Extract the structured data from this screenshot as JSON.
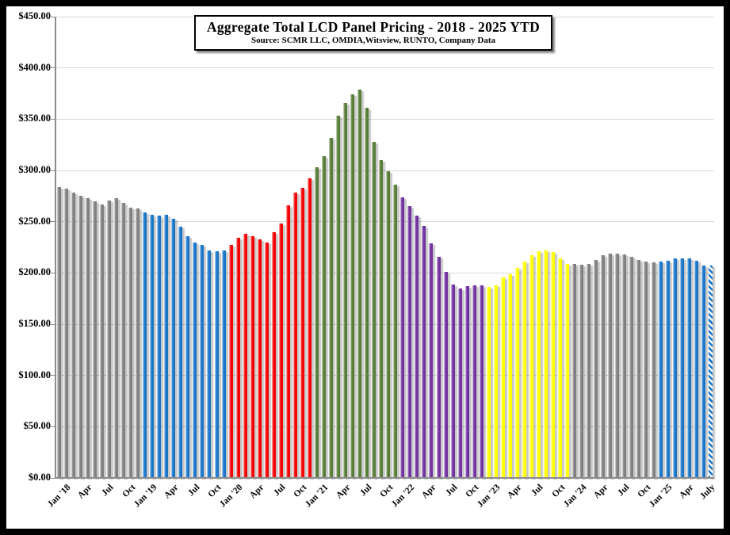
{
  "title_box": {
    "title": "Aggregate Total LCD Panel Pricing - 2018 - 2025 YTD",
    "source": "Source: SCMR LLC, OMDIA,Witsview, RUNTO, Company Data"
  },
  "colors": {
    "grid": "#DADADA",
    "axis": "#8c8c8c",
    "frame_border": "#000000",
    "background": "#ffffff",
    "gray_year": "#7F7F7F",
    "blue_year": "#1874C8",
    "red_year": "#F40000",
    "green_year": "#557C34",
    "purple_year": "#7030A0",
    "yellow_year": "#FFFF00"
  },
  "chart_data": {
    "type": "bar",
    "title": "Aggregate Total LCD Panel Pricing - 2018 - 2025 YTD",
    "subtitle": "Source: SCMR LLC, OMDIA,Witsview, RUNTO, Company Data",
    "ylim": [
      0,
      450
    ],
    "ytick_step": 50,
    "grid": true,
    "legend": "none",
    "y_tick_labels": [
      "$0.00",
      "$50.00",
      "$100.00",
      "$150.00",
      "$200.00",
      "$250.00",
      "$300.00",
      "$350.00",
      "$400.00",
      "$450.00"
    ],
    "x_tick_labels": [
      "Jan '18",
      "Apr",
      "Jul",
      "Oct",
      "Jan '19",
      "Apr",
      "Jul",
      "Oct",
      "Jan '20",
      "Apr",
      "Jul",
      "Oct",
      "Jan '21",
      "Apr",
      "Jul",
      "Oct",
      "Jan '22",
      "Apr",
      "Jul",
      "Oct",
      "Jan '23",
      "Apr",
      "Jul",
      "Oct",
      "Jan '24",
      "Apr",
      "Jul",
      "Oct",
      "Jan '25",
      "Apr",
      "July"
    ],
    "x_tick_every_n_bars": 3,
    "series": [
      {
        "name": "2018",
        "color": "#7F7F7F",
        "values": [
          284,
          282,
          278,
          275,
          273,
          270,
          267,
          271,
          273,
          268,
          264,
          263
        ]
      },
      {
        "name": "2019",
        "color": "#1874C8",
        "values": [
          259,
          257,
          256,
          257,
          253,
          245,
          236,
          230,
          227,
          222,
          221,
          222
        ]
      },
      {
        "name": "2020",
        "color": "#F40000",
        "values": [
          227,
          234,
          238,
          236,
          233,
          230,
          240,
          248,
          266,
          278,
          283,
          292
        ]
      },
      {
        "name": "2021",
        "color": "#557C34",
        "values": [
          303,
          314,
          332,
          353,
          366,
          374,
          379,
          361,
          328,
          310,
          299,
          286
        ]
      },
      {
        "name": "2022",
        "color": "#7030A0",
        "values": [
          274,
          265,
          256,
          246,
          229,
          216,
          201,
          189,
          185,
          187,
          188,
          188
        ]
      },
      {
        "name": "2023",
        "color": "#FFFF00",
        "values": [
          186,
          188,
          196,
          199,
          205,
          211,
          217,
          221,
          222,
          220,
          214,
          209
        ]
      },
      {
        "name": "2024",
        "color": "#7F7F7F",
        "values": [
          209,
          208,
          209,
          213,
          217,
          219,
          219,
          218,
          216,
          213,
          211,
          210
        ]
      },
      {
        "name": "2025",
        "color": "#1874C8",
        "values": [
          211,
          212,
          214,
          214,
          214,
          212,
          207
        ]
      }
    ],
    "estimate_bar": {
      "value": 207,
      "style": "diagonal-hatch",
      "color": "#1874C8"
    }
  }
}
